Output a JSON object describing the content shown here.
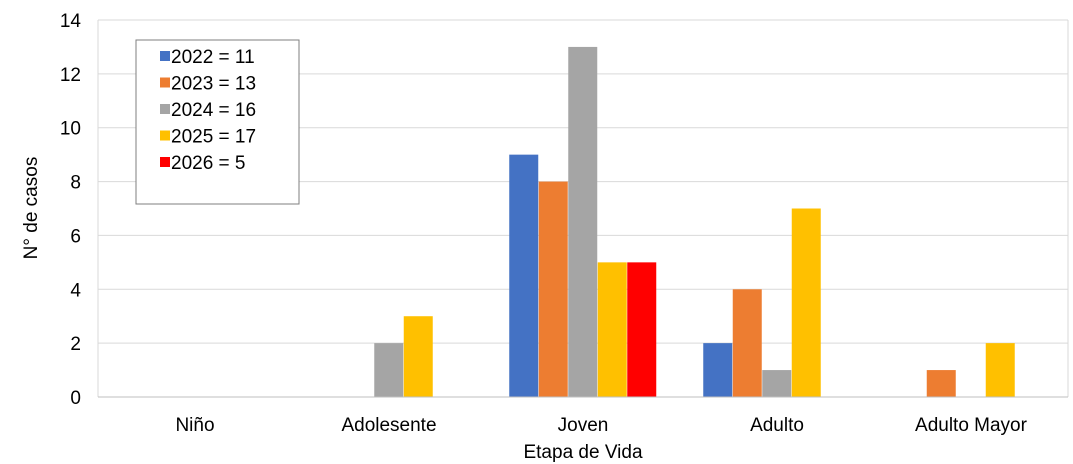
{
  "chart_data": {
    "type": "bar",
    "xlabel": "Etapa de Vida",
    "ylabel": "N° de casos",
    "ylim": [
      0,
      14
    ],
    "yticks": [
      0,
      2,
      4,
      6,
      8,
      10,
      12,
      14
    ],
    "grid": true,
    "legend_position": "top-left",
    "categories": [
      "Niño",
      "Adolesente",
      "Joven",
      "Adulto",
      "Adulto Mayor"
    ],
    "series": [
      {
        "name": "2022 = 11",
        "color": "#4472C4",
        "values": [
          0,
          0,
          9,
          2,
          0
        ]
      },
      {
        "name": "2023 = 13",
        "color": "#ED7D31",
        "values": [
          0,
          0,
          8,
          4,
          1
        ]
      },
      {
        "name": "2024 = 16",
        "color": "#A5A5A5",
        "values": [
          0,
          2,
          13,
          1,
          0
        ]
      },
      {
        "name": "2025 = 17",
        "color": "#FFC000",
        "values": [
          0,
          3,
          5,
          7,
          2
        ]
      },
      {
        "name": "2026 = 5",
        "color": "#FF0000",
        "values": [
          0,
          0,
          5,
          0,
          0
        ]
      }
    ]
  }
}
